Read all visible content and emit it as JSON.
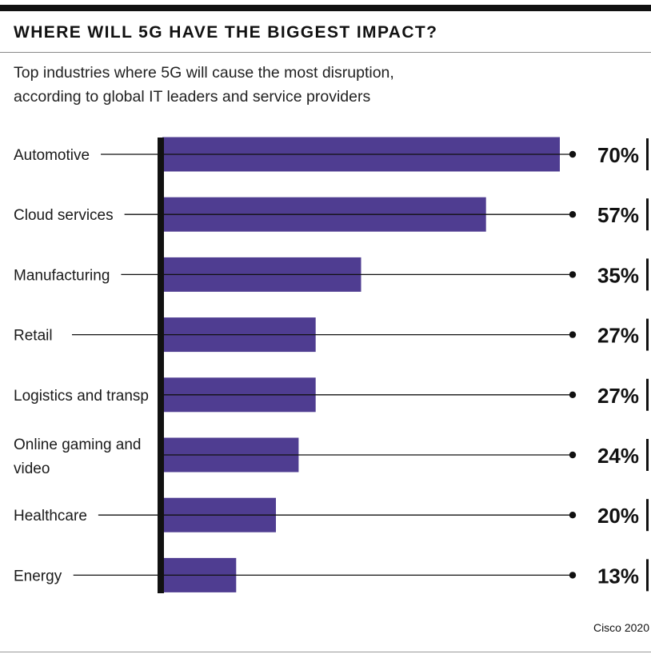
{
  "header": {
    "title": "WHERE WILL 5G HAVE THE BIGGEST IMPACT?",
    "subtitle_lines": [
      "Top industries where 5G will cause the most disruption,",
      "according to global IT leaders and service providers"
    ]
  },
  "footer": {
    "source": "Cisco 2020"
  },
  "colors": {
    "bar": "#4f3d91",
    "axis": "#111111",
    "text": "#111111"
  },
  "chart_data": {
    "type": "bar",
    "orientation": "horizontal",
    "categories": [
      [
        "Automotive"
      ],
      [
        "Cloud services"
      ],
      [
        "Manufacturing"
      ],
      [
        "Retail"
      ],
      [
        "Logistics and transp"
      ],
      [
        "Online gaming and",
        "video"
      ],
      [
        "Healthcare"
      ],
      [
        "Energy"
      ]
    ],
    "values": [
      70,
      57,
      35,
      27,
      27,
      24,
      20,
      13
    ],
    "value_labels": [
      "70%",
      "57%",
      "35%",
      "27%",
      "27%",
      "24%",
      "20%",
      "13%"
    ],
    "xlim": [
      0,
      70
    ],
    "grid": false,
    "legend": "none"
  }
}
